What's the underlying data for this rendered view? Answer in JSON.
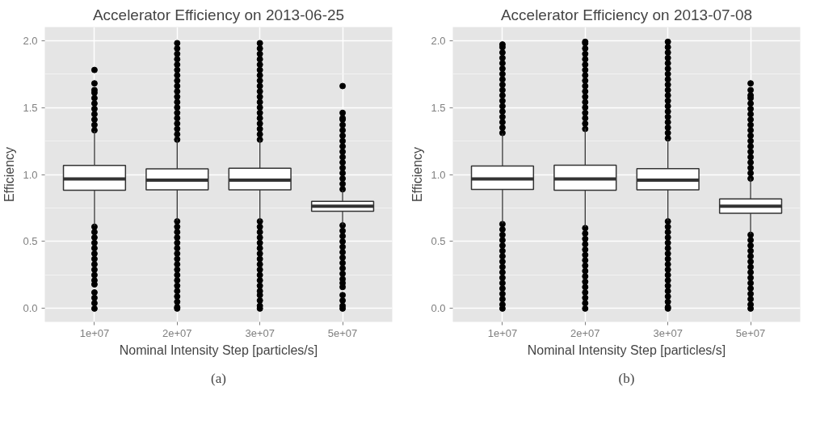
{
  "chart_data": [
    {
      "type": "box",
      "title": "Accelerator Efficiency on 2013-06-25",
      "xlabel": "Nominal Intensity Step [particles/s]",
      "ylabel": "Efficiency",
      "categories": [
        "1e+07",
        "2e+07",
        "3e+07",
        "5e+07"
      ],
      "ylim": [
        -0.1,
        2.1
      ],
      "yticks": [
        {
          "value": 0,
          "label": "0.0"
        },
        {
          "value": 0.5,
          "label": "0.5"
        },
        {
          "value": 1,
          "label": "1.0"
        },
        {
          "value": 1.5,
          "label": "1.5"
        },
        {
          "value": 2,
          "label": "2.0"
        }
      ],
      "grid": true,
      "annotations": [
        "(a)"
      ],
      "boxes": [
        {
          "low": 0.618,
          "q1": 0.882,
          "median": 0.967,
          "q3": 1.068,
          "high": 1.325,
          "outliers": [
            1.33,
            1.37,
            1.41,
            1.45,
            1.49,
            1.53,
            1.57,
            1.61,
            1.63,
            1.68,
            1.78,
            0.61,
            0.57,
            0.53,
            0.49,
            0.45,
            0.41,
            0.37,
            0.33,
            0.29,
            0.25,
            0.21,
            0.18,
            0.12,
            0.08,
            0.04,
            0.0
          ]
        },
        {
          "low": 0.655,
          "q1": 0.886,
          "median": 0.958,
          "q3": 1.042,
          "high": 1.26,
          "outliers": [
            1.26,
            1.3,
            1.34,
            1.38,
            1.42,
            1.46,
            1.5,
            1.54,
            1.58,
            1.62,
            1.66,
            1.7,
            1.74,
            1.78,
            1.82,
            1.86,
            1.9,
            1.94,
            1.98,
            0.65,
            0.61,
            0.57,
            0.53,
            0.49,
            0.45,
            0.41,
            0.37,
            0.33,
            0.29,
            0.25,
            0.21,
            0.17,
            0.13,
            0.09,
            0.05,
            0.01,
            0.0
          ]
        },
        {
          "low": 0.655,
          "q1": 0.886,
          "median": 0.958,
          "q3": 1.046,
          "high": 1.26,
          "outliers": [
            1.26,
            1.3,
            1.34,
            1.38,
            1.42,
            1.46,
            1.5,
            1.54,
            1.58,
            1.62,
            1.66,
            1.7,
            1.74,
            1.78,
            1.82,
            1.86,
            1.9,
            1.94,
            1.98,
            0.65,
            0.61,
            0.57,
            0.53,
            0.49,
            0.45,
            0.41,
            0.37,
            0.33,
            0.29,
            0.25,
            0.21,
            0.17,
            0.13,
            0.1,
            0.06,
            0.02,
            0.0
          ]
        },
        {
          "low": 0.623,
          "q1": 0.726,
          "median": 0.763,
          "q3": 0.8,
          "high": 0.884,
          "outliers": [
            0.89,
            0.93,
            0.97,
            1.01,
            1.05,
            1.09,
            1.13,
            1.17,
            1.21,
            1.25,
            1.29,
            1.33,
            1.37,
            1.41,
            1.42,
            1.46,
            1.66,
            0.62,
            0.58,
            0.54,
            0.5,
            0.46,
            0.42,
            0.38,
            0.34,
            0.3,
            0.26,
            0.22,
            0.19,
            0.16,
            0.1,
            0.06,
            0.02,
            0.0
          ]
        }
      ]
    },
    {
      "type": "box",
      "title": "Accelerator Efficiency on 2013-07-08",
      "xlabel": "Nominal Intensity Step [particles/s]",
      "ylabel": "Efficiency",
      "categories": [
        "1e+07",
        "2e+07",
        "3e+07",
        "5e+07"
      ],
      "ylim": [
        -0.1,
        2.1
      ],
      "yticks": [
        {
          "value": 0,
          "label": "0.0"
        },
        {
          "value": 0.5,
          "label": "0.5"
        },
        {
          "value": 1,
          "label": "1.0"
        },
        {
          "value": 1.5,
          "label": "1.5"
        },
        {
          "value": 2,
          "label": "2.0"
        }
      ],
      "grid": true,
      "annotations": [
        "(b)"
      ],
      "boxes": [
        {
          "low": 0.636,
          "q1": 0.889,
          "median": 0.967,
          "q3": 1.064,
          "high": 1.306,
          "outliers": [
            1.31,
            1.35,
            1.39,
            1.43,
            1.47,
            1.51,
            1.55,
            1.59,
            1.63,
            1.67,
            1.71,
            1.75,
            1.79,
            1.83,
            1.87,
            1.91,
            1.95,
            1.97,
            0.63,
            0.59,
            0.55,
            0.51,
            0.47,
            0.43,
            0.39,
            0.35,
            0.31,
            0.27,
            0.23,
            0.19,
            0.15,
            0.11,
            0.07,
            0.03,
            0.0
          ]
        },
        {
          "low": 0.608,
          "q1": 0.882,
          "median": 0.967,
          "q3": 1.07,
          "high": 1.343,
          "outliers": [
            1.34,
            1.38,
            1.42,
            1.46,
            1.5,
            1.54,
            1.58,
            1.62,
            1.66,
            1.7,
            1.74,
            1.78,
            1.82,
            1.86,
            1.9,
            1.94,
            1.98,
            1.99,
            0.6,
            0.56,
            0.52,
            0.48,
            0.44,
            0.4,
            0.36,
            0.32,
            0.28,
            0.24,
            0.2,
            0.16,
            0.12,
            0.08,
            0.04,
            0.0
          ]
        },
        {
          "low": 0.655,
          "q1": 0.886,
          "median": 0.958,
          "q3": 1.044,
          "high": 1.265,
          "outliers": [
            1.27,
            1.31,
            1.35,
            1.39,
            1.43,
            1.47,
            1.51,
            1.55,
            1.59,
            1.63,
            1.67,
            1.71,
            1.75,
            1.79,
            1.83,
            1.87,
            1.91,
            1.95,
            1.99,
            0.65,
            0.61,
            0.57,
            0.53,
            0.49,
            0.45,
            0.41,
            0.37,
            0.33,
            0.29,
            0.25,
            0.21,
            0.17,
            0.13,
            0.09,
            0.05,
            0.01,
            0.0
          ]
        },
        {
          "low": 0.556,
          "q1": 0.711,
          "median": 0.763,
          "q3": 0.817,
          "high": 0.971,
          "outliers": [
            0.97,
            1.01,
            1.05,
            1.09,
            1.13,
            1.17,
            1.21,
            1.25,
            1.29,
            1.33,
            1.37,
            1.41,
            1.45,
            1.49,
            1.53,
            1.57,
            1.59,
            1.63,
            1.68,
            0.55,
            0.51,
            0.47,
            0.43,
            0.39,
            0.35,
            0.31,
            0.27,
            0.23,
            0.19,
            0.15,
            0.11,
            0.07,
            0.03,
            0.0
          ]
        }
      ]
    }
  ]
}
